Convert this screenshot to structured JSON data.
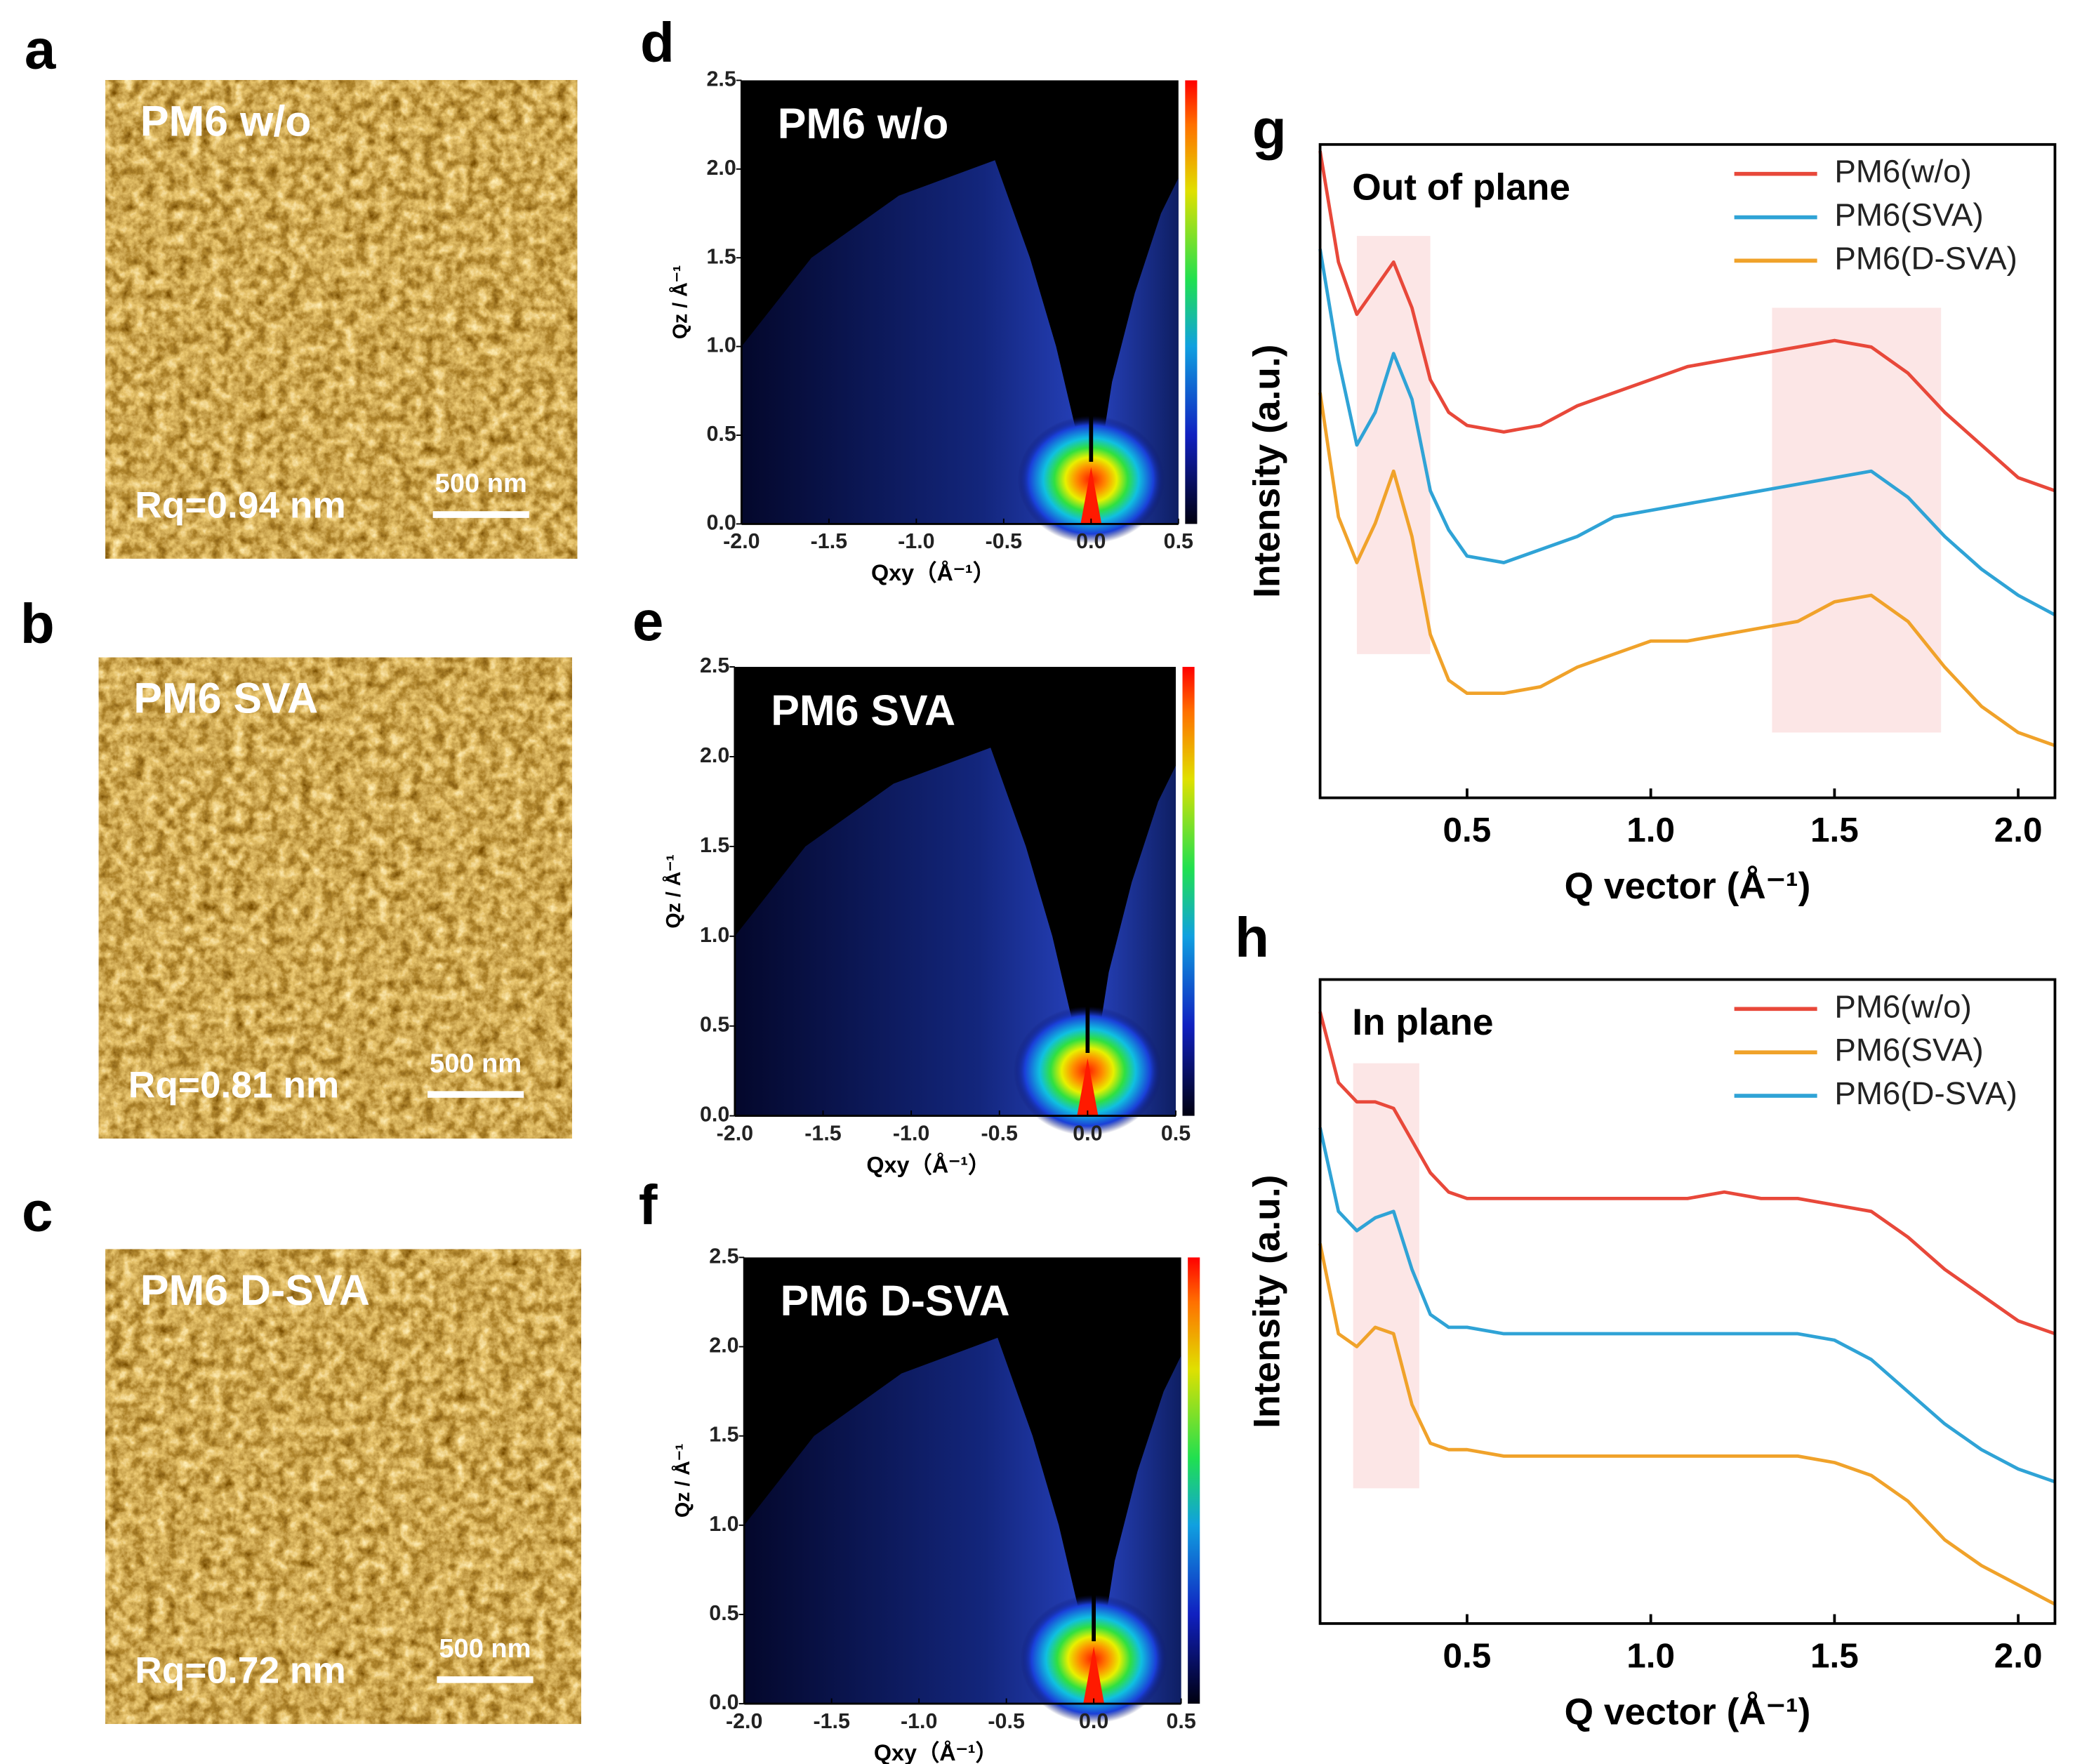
{
  "chart_data": [
    {
      "type": "image",
      "label": "a",
      "title": "PM6 w/o",
      "annotation": "Rq=0.94 nm",
      "scale_bar": "500 nm"
    },
    {
      "type": "image",
      "label": "b",
      "title": "PM6 SVA",
      "annotation": "Rq=0.81 nm",
      "scale_bar": "500 nm"
    },
    {
      "type": "image",
      "label": "c",
      "title": "PM6 D-SVA",
      "annotation": "Rq=0.72 nm",
      "scale_bar": "500 nm"
    },
    {
      "type": "heatmap",
      "label": "d",
      "title": "PM6 w/o",
      "xlabel": "Qxy（Å⁻¹）",
      "ylabel": "Qz / Å⁻¹",
      "xlim": [
        -2,
        0.5
      ],
      "ylim": [
        0,
        2.5
      ],
      "xticks": [
        {
          "value": -2,
          "label": "-2.0"
        },
        -1.5,
        {
          "value": -1,
          "label": "-1.0"
        },
        -0.5,
        {
          "value": 0,
          "label": "0.0"
        },
        0.5
      ],
      "yticks": [
        {
          "value": 0,
          "label": "0.0"
        },
        0.5,
        {
          "value": 1,
          "label": "1.0"
        },
        1.5,
        {
          "value": 2,
          "label": "2.0"
        },
        2.5
      ],
      "colorbar": true
    },
    {
      "type": "heatmap",
      "label": "e",
      "title": "PM6 SVA",
      "xlabel": "Qxy（Å⁻¹）",
      "ylabel": "Qz / Å⁻¹",
      "xlim": [
        -2,
        0.5
      ],
      "ylim": [
        0,
        2.5
      ],
      "xticks": [
        {
          "value": -2,
          "label": "-2.0"
        },
        -1.5,
        {
          "value": -1,
          "label": "-1.0"
        },
        -0.5,
        {
          "value": 0,
          "label": "0.0"
        },
        0.5
      ],
      "yticks": [
        {
          "value": 0,
          "label": "0.0"
        },
        0.5,
        {
          "value": 1,
          "label": "1.0"
        },
        1.5,
        {
          "value": 2,
          "label": "2.0"
        },
        2.5
      ],
      "colorbar": true
    },
    {
      "type": "heatmap",
      "label": "f",
      "title": "PM6 D-SVA",
      "xlabel": "Qxy（Å⁻¹）",
      "ylabel": "Qz / Å⁻¹",
      "xlim": [
        -2,
        0.5
      ],
      "ylim": [
        0,
        2.5
      ],
      "xticks": [
        {
          "value": -2,
          "label": "-2.0"
        },
        -1.5,
        {
          "value": -1,
          "label": "-1.0"
        },
        -0.5,
        {
          "value": 0,
          "label": "0.0"
        },
        0.5
      ],
      "yticks": [
        {
          "value": 0,
          "label": "0.0"
        },
        0.5,
        {
          "value": 1,
          "label": "1.0"
        },
        1.5,
        {
          "value": 2,
          "label": "2.0"
        },
        2.5
      ],
      "colorbar": true
    },
    {
      "type": "line",
      "label": "g",
      "title": "Out of plane",
      "xlabel": "Q vector (Å⁻¹)",
      "ylabel": "Intensity (a.u.)",
      "xlim": [
        0.1,
        2.1
      ],
      "ylim": [
        0,
        10
      ],
      "xticks": [
        0.5,
        {
          "value": 1,
          "label": "1.0"
        },
        1.5,
        {
          "value": 2,
          "label": "2.0"
        }
      ],
      "highlights": [
        {
          "xlim": [
            0.2,
            0.4
          ],
          "ylim": [
            2.2,
            8.6
          ]
        },
        {
          "xlim": [
            1.33,
            1.79
          ],
          "ylim": [
            1.0,
            7.5
          ]
        }
      ],
      "x": [
        0.1,
        0.15,
        0.2,
        0.25,
        0.3,
        0.35,
        0.4,
        0.45,
        0.5,
        0.6,
        0.7,
        0.8,
        0.9,
        1.0,
        1.1,
        1.2,
        1.3,
        1.4,
        1.5,
        1.6,
        1.7,
        1.8,
        1.9,
        2.0,
        2.1
      ],
      "series": [
        {
          "name": "PM6(w/o)",
          "color": "#e8483a",
          "values": [
            9.9,
            8.2,
            7.4,
            7.8,
            8.2,
            7.5,
            6.4,
            5.9,
            5.7,
            5.6,
            5.7,
            6.0,
            6.2,
            6.4,
            6.6,
            6.7,
            6.8,
            6.9,
            7.0,
            6.9,
            6.5,
            5.9,
            5.4,
            4.9,
            4.7
          ]
        },
        {
          "name": "PM6(SVA)",
          "color": "#2fa3d6",
          "values": [
            8.4,
            6.7,
            5.4,
            5.9,
            6.8,
            6.1,
            4.7,
            4.1,
            3.7,
            3.6,
            3.8,
            4.0,
            4.3,
            4.4,
            4.5,
            4.6,
            4.7,
            4.8,
            4.9,
            5.0,
            4.6,
            4.0,
            3.5,
            3.1,
            2.8
          ]
        },
        {
          "name": "PM6(D-SVA)",
          "color": "#f0a22a",
          "values": [
            6.2,
            4.3,
            3.6,
            4.2,
            5.0,
            4.0,
            2.5,
            1.8,
            1.6,
            1.6,
            1.7,
            2.0,
            2.2,
            2.4,
            2.4,
            2.5,
            2.6,
            2.7,
            3.0,
            3.1,
            2.7,
            2.0,
            1.4,
            1.0,
            0.8
          ]
        }
      ]
    },
    {
      "type": "line",
      "label": "h",
      "title": "In plane",
      "xlabel": "Q vector (Å⁻¹)",
      "ylabel": "Intensity (a.u.)",
      "xlim": [
        0.1,
        2.1
      ],
      "ylim": [
        0,
        10
      ],
      "xticks": [
        0.5,
        {
          "value": 1,
          "label": "1.0"
        },
        1.5,
        {
          "value": 2,
          "label": "2.0"
        }
      ],
      "highlights": [
        {
          "xlim": [
            0.19,
            0.37
          ],
          "ylim": [
            2.1,
            8.7
          ]
        }
      ],
      "x": [
        0.1,
        0.15,
        0.2,
        0.25,
        0.3,
        0.35,
        0.4,
        0.45,
        0.5,
        0.6,
        0.7,
        0.8,
        0.9,
        1.0,
        1.1,
        1.2,
        1.3,
        1.4,
        1.5,
        1.6,
        1.7,
        1.8,
        1.9,
        2.0,
        2.1
      ],
      "series": [
        {
          "name": "PM6(w/o)",
          "color": "#e8483a",
          "values": [
            9.5,
            8.4,
            8.1,
            8.1,
            8.0,
            7.5,
            7.0,
            6.7,
            6.6,
            6.6,
            6.6,
            6.6,
            6.6,
            6.6,
            6.6,
            6.7,
            6.6,
            6.6,
            6.5,
            6.4,
            6.0,
            5.5,
            5.1,
            4.7,
            4.5
          ]
        },
        {
          "name": "PM6(SVA)",
          "color": "#f0a22a",
          "values": [
            5.9,
            4.5,
            4.3,
            4.6,
            4.5,
            3.4,
            2.8,
            2.7,
            2.7,
            2.6,
            2.6,
            2.6,
            2.6,
            2.6,
            2.6,
            2.6,
            2.6,
            2.6,
            2.5,
            2.3,
            1.9,
            1.3,
            0.9,
            0.6,
            0.3
          ]
        },
        {
          "name": "PM6(D-SVA)",
          "color": "#2fa3d6",
          "values": [
            7.7,
            6.4,
            6.1,
            6.3,
            6.4,
            5.5,
            4.8,
            4.6,
            4.6,
            4.5,
            4.5,
            4.5,
            4.5,
            4.5,
            4.5,
            4.5,
            4.5,
            4.5,
            4.4,
            4.1,
            3.6,
            3.1,
            2.7,
            2.4,
            2.2
          ]
        }
      ]
    }
  ]
}
